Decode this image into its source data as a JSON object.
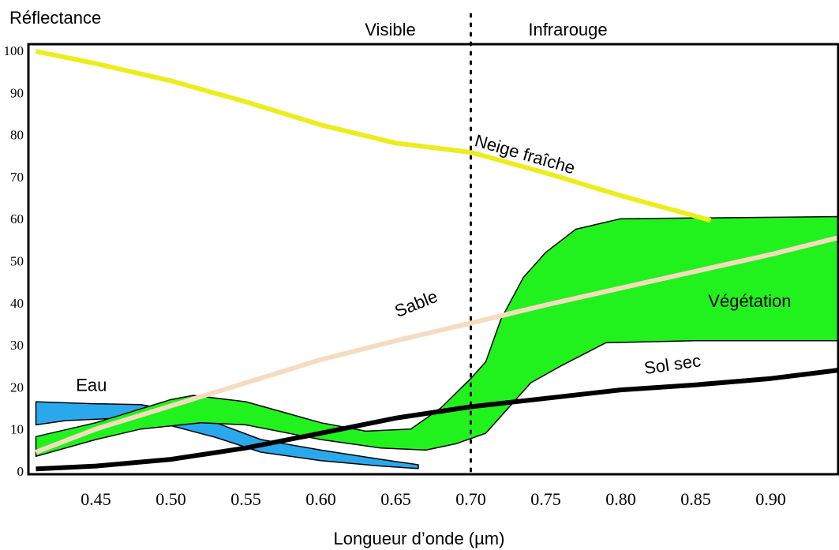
{
  "chart_data": {
    "type": "line",
    "ylabel": "Réflectance",
    "xlabel": "Longueur d’onde (µm)",
    "xlim": [
      0.405,
      0.945
    ],
    "ylim": [
      0,
      100
    ],
    "x_ticks": [
      "0.45",
      "0.50",
      "0.55",
      "0.60",
      "0.65",
      "0.70",
      "0.75",
      "0.80",
      "0.85",
      "0.90"
    ],
    "x_tick_values": [
      0.45,
      0.5,
      0.55,
      0.6,
      0.65,
      0.7,
      0.75,
      0.8,
      0.85,
      0.9
    ],
    "y_ticks": [
      "0",
      "10",
      "20",
      "30",
      "40",
      "50",
      "60",
      "70",
      "80",
      "90",
      "100"
    ],
    "y_tick_values": [
      0,
      10,
      20,
      30,
      40,
      50,
      60,
      70,
      80,
      90,
      100
    ],
    "divider": {
      "x": 0.7,
      "left_label": "Visible",
      "right_label": "Infrarouge"
    },
    "lines": [
      {
        "name": "Neige fraîche",
        "color": "#eded1e",
        "points": [
          [
            0.41,
            99.8
          ],
          [
            0.45,
            96.9
          ],
          [
            0.5,
            92.8
          ],
          [
            0.55,
            87.8
          ],
          [
            0.6,
            82.3
          ],
          [
            0.65,
            78.0
          ],
          [
            0.7,
            75.8
          ],
          [
            0.75,
            70.9
          ],
          [
            0.8,
            65.5
          ],
          [
            0.86,
            59.6
          ]
        ]
      },
      {
        "name": "Sable",
        "color": "#f5dcc0",
        "points": [
          [
            0.41,
            4.5
          ],
          [
            0.45,
            10.0
          ],
          [
            0.5,
            15.5
          ],
          [
            0.55,
            21.0
          ],
          [
            0.6,
            26.5
          ],
          [
            0.65,
            31.0
          ],
          [
            0.7,
            35.2
          ],
          [
            0.75,
            39.5
          ],
          [
            0.8,
            43.5
          ],
          [
            0.85,
            47.5
          ],
          [
            0.9,
            51.5
          ],
          [
            0.945,
            55.5
          ]
        ]
      },
      {
        "name": "Sol sec",
        "color": "#000000",
        "points": [
          [
            0.41,
            0.5
          ],
          [
            0.45,
            1.2
          ],
          [
            0.5,
            2.8
          ],
          [
            0.55,
            5.5
          ],
          [
            0.6,
            9.0
          ],
          [
            0.65,
            12.6
          ],
          [
            0.7,
            15.3
          ],
          [
            0.75,
            17.3
          ],
          [
            0.8,
            19.3
          ],
          [
            0.85,
            20.5
          ],
          [
            0.9,
            22.0
          ],
          [
            0.945,
            24.0
          ]
        ]
      }
    ],
    "bands": [
      {
        "name": "Eau",
        "color": "#2aa8ec",
        "upper": [
          [
            0.41,
            16.5
          ],
          [
            0.45,
            16.0
          ],
          [
            0.48,
            15.8
          ],
          [
            0.5,
            14.5
          ],
          [
            0.53,
            11.5
          ],
          [
            0.56,
            7.5
          ],
          [
            0.6,
            5.0
          ],
          [
            0.64,
            2.8
          ],
          [
            0.665,
            1.5
          ]
        ],
        "lower": [
          [
            0.41,
            11.0
          ],
          [
            0.43,
            12.0
          ],
          [
            0.46,
            12.5
          ],
          [
            0.48,
            12.2
          ],
          [
            0.5,
            10.8
          ],
          [
            0.53,
            8.0
          ],
          [
            0.56,
            4.5
          ],
          [
            0.6,
            2.5
          ],
          [
            0.64,
            1.2
          ],
          [
            0.665,
            0.6
          ]
        ]
      },
      {
        "name": "Végétation",
        "color": "#21f21e",
        "upper": [
          [
            0.41,
            8.2
          ],
          [
            0.45,
            11.5
          ],
          [
            0.5,
            17.0
          ],
          [
            0.515,
            18.0
          ],
          [
            0.55,
            16.5
          ],
          [
            0.6,
            11.5
          ],
          [
            0.63,
            9.5
          ],
          [
            0.66,
            10.0
          ],
          [
            0.68,
            15.0
          ],
          [
            0.7,
            22.0
          ],
          [
            0.71,
            26.0
          ],
          [
            0.72,
            36.0
          ],
          [
            0.735,
            46.0
          ],
          [
            0.75,
            52.0
          ],
          [
            0.77,
            57.5
          ],
          [
            0.8,
            60.0
          ],
          [
            0.945,
            60.5
          ]
        ],
        "lower": [
          [
            0.41,
            3.5
          ],
          [
            0.45,
            7.5
          ],
          [
            0.48,
            10.0
          ],
          [
            0.52,
            11.5
          ],
          [
            0.55,
            11.0
          ],
          [
            0.6,
            7.5
          ],
          [
            0.64,
            5.5
          ],
          [
            0.67,
            5.0
          ],
          [
            0.69,
            6.5
          ],
          [
            0.71,
            9.0
          ],
          [
            0.72,
            13.0
          ],
          [
            0.74,
            21.0
          ],
          [
            0.76,
            25.0
          ],
          [
            0.79,
            30.5
          ],
          [
            0.85,
            31.0
          ],
          [
            0.945,
            31.0
          ]
        ]
      }
    ],
    "labels": [
      {
        "text": "Neige fraîche",
        "x": 0.735,
        "y": 74.0,
        "angle": 16
      },
      {
        "text": "Sable",
        "x": 0.665,
        "y": 38.5,
        "angle": -22
      },
      {
        "text": "Végétation",
        "x": 0.886,
        "y": 39.0,
        "angle": 0
      },
      {
        "text": "Sol sec",
        "x": 0.835,
        "y": 24.0,
        "angle": -8
      },
      {
        "text": "Eau",
        "x": 0.447,
        "y": 19.0,
        "angle": 0
      }
    ]
  }
}
